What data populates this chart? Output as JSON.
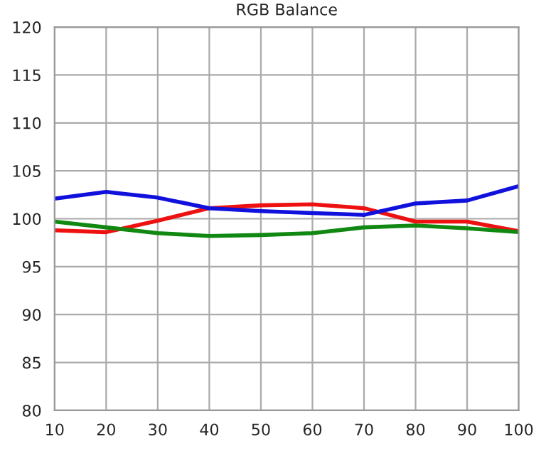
{
  "chart_data": {
    "type": "line",
    "title": "RGB Balance",
    "x": [
      10,
      20,
      30,
      40,
      50,
      60,
      70,
      80,
      90,
      100
    ],
    "series": [
      {
        "color": "#ee1111",
        "values": [
          98.8,
          98.6,
          99.8,
          101.1,
          101.4,
          101.5,
          101.1,
          99.7,
          99.7,
          98.7
        ]
      },
      {
        "color": "#1111dd",
        "values": [
          102.1,
          102.8,
          102.2,
          101.1,
          100.8,
          100.6,
          100.4,
          101.6,
          101.9,
          103.4
        ]
      },
      {
        "color": "#118811",
        "values": [
          99.7,
          99.1,
          98.5,
          98.2,
          98.3,
          98.5,
          99.1,
          99.3,
          99.0,
          98.6
        ]
      }
    ],
    "xlim": [
      10,
      100
    ],
    "xticks": [
      10,
      20,
      30,
      40,
      50,
      60,
      70,
      80,
      90,
      100
    ],
    "ylim": [
      80,
      120
    ],
    "yticks": [
      80,
      85,
      90,
      95,
      100,
      105,
      110,
      115,
      120
    ],
    "grid": true,
    "marker": "none",
    "line_style": "solid"
  }
}
